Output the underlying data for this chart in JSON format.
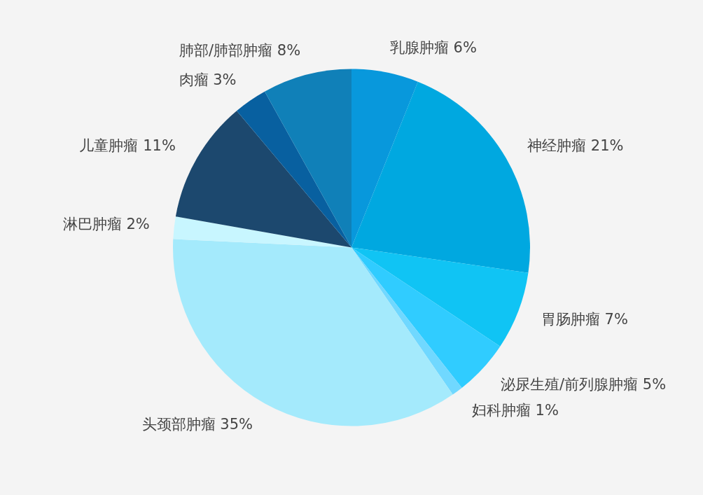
{
  "chart_data": {
    "type": "pie",
    "categories": [
      "乳腺肿瘤",
      "神经肿瘤",
      "胃肠肿瘤",
      "泌尿生殖/前列腺肿瘤",
      "妇科肿瘤",
      "头颈部肿瘤",
      "淋巴肿瘤",
      "儿童肿瘤",
      "肉瘤",
      "肺部/肺部肿瘤"
    ],
    "values": [
      6,
      21,
      7,
      5,
      1,
      35,
      2,
      11,
      3,
      8
    ],
    "value_labels": [
      "6%",
      "21%",
      "7%",
      "5%",
      "1%",
      "35%",
      "2%",
      "11%",
      "3%",
      "8%"
    ],
    "colors": [
      "#0898dc",
      "#00a8e0",
      "#10c4f4",
      "#30ccff",
      "#70d8ff",
      "#a4eafc",
      "#c8f6ff",
      "#1c486e",
      "#0860a0",
      "#1080b8"
    ]
  }
}
